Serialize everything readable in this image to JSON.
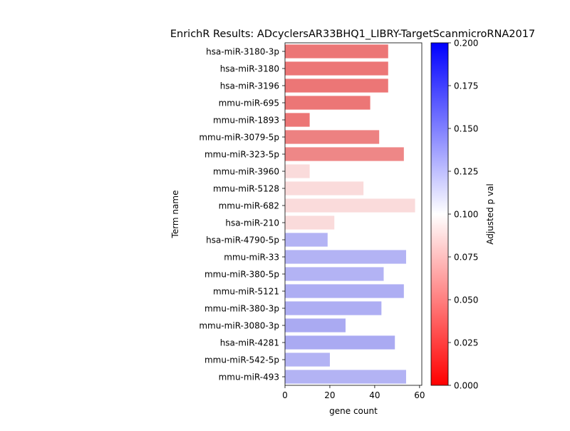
{
  "chart_data": {
    "type": "bar",
    "orientation": "horizontal",
    "title": "EnrichR Results: ADcyclersAR33BHQ1_LIBRY-TargetScanmicroRNA2017",
    "xlabel": "gene count",
    "ylabel": "Term name",
    "xlim": [
      0,
      61
    ],
    "xticks": [
      "0",
      "20",
      "40",
      "60"
    ],
    "categories": [
      "hsa-miR-3180-3p",
      "hsa-miR-3180",
      "hsa-miR-3196",
      "mmu-miR-695",
      "mmu-miR-1893",
      "mmu-miR-3079-5p",
      "mmu-miR-323-5p",
      "mmu-miR-3960",
      "mmu-miR-5128",
      "mmu-miR-682",
      "hsa-miR-210",
      "hsa-miR-4790-5p",
      "mmu-miR-33",
      "mmu-miR-380-5p",
      "mmu-miR-5121",
      "mmu-miR-380-3p",
      "mmu-miR-3080-3p",
      "hsa-miR-4281",
      "mmu-miR-542-5p",
      "mmu-miR-493"
    ],
    "values": [
      46,
      46,
      46,
      38,
      11,
      42,
      53,
      11,
      35,
      58,
      22,
      19,
      54,
      44,
      53,
      43,
      27,
      49,
      20,
      54
    ],
    "bar_colors": [
      "#ec7676",
      "#ec7676",
      "#ec7676",
      "#ec7676",
      "#ec7676",
      "#ed8181",
      "#ee8787",
      "#fadbdb",
      "#fadbdb",
      "#fadbdb",
      "#fadbdb",
      "#b3b3f4",
      "#b3b3f4",
      "#b3b3f4",
      "#aeaef3",
      "#aeaef3",
      "#aaaaf2",
      "#aaaaf2",
      "#b3b3f4",
      "#b3b3f4"
    ],
    "colorbar": {
      "label": "Adjusted p val",
      "range": [
        0,
        0.2
      ],
      "ticks": [
        "0.000",
        "0.025",
        "0.050",
        "0.075",
        "0.100",
        "0.125",
        "0.150",
        "0.175",
        "0.200"
      ],
      "colors": [
        "#ff0000",
        "#ffffff",
        "#0000ff"
      ]
    },
    "grid": false,
    "legend": "none"
  }
}
